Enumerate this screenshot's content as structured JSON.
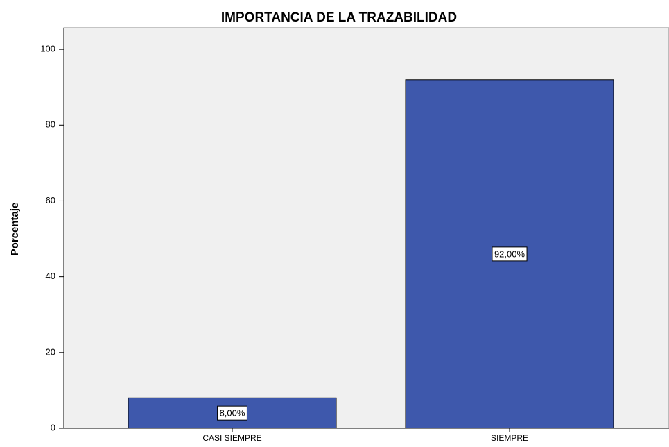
{
  "chart_data": {
    "type": "bar",
    "title": "IMPORTANCIA DE LA TRAZABILIDAD",
    "y_label": "Porcentaje",
    "categories": [
      "CASI SIEMPRE",
      "SIEMPRE"
    ],
    "values": [
      8,
      92
    ],
    "value_labels": [
      "8,00%",
      "92,00%"
    ],
    "color": "#3e58ac",
    "ylim": [
      0,
      105.7
    ],
    "yticks": [
      0,
      20,
      40,
      60,
      80,
      100
    ],
    "grid": false
  }
}
